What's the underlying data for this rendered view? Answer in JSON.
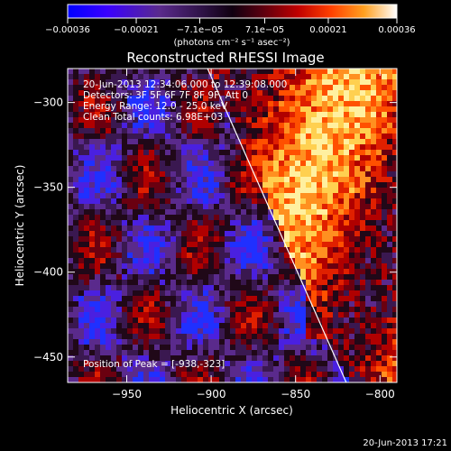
{
  "chart_data": {
    "type": "heatmap",
    "title": "Reconstructed RHESSI Image",
    "xlabel": "Heliocentric X (arcsec)",
    "ylabel": "Heliocentric Y (arcsec)",
    "xlim": [
      -985,
      -790
    ],
    "ylim": [
      -465,
      -280
    ],
    "x_ticks": [
      -950,
      -900,
      -850,
      -800
    ],
    "y_ticks": [
      -300,
      -350,
      -400,
      -450
    ],
    "x_tick_labels": [
      "−950",
      "−900",
      "−850",
      "−800"
    ],
    "y_tick_labels": [
      "−300",
      "−350",
      "−400",
      "−450"
    ],
    "colorbar": {
      "range": [
        -0.00036,
        0.00036
      ],
      "ticks": [
        -0.00036,
        -0.00021,
        -7.1e-05,
        7.1e-05,
        0.00021,
        0.00036
      ],
      "tick_labels": [
        "−0.00036",
        "−0.00021",
        "−7.1e−05",
        "7.1e−05",
        "0.00021",
        "0.00036"
      ],
      "units": "(photons cm⁻² s⁻¹ asec⁻²)"
    },
    "annotations": [
      "20-Jun-2013 12:34:06.000 to 12:39:08.000",
      "Detectors: 3F 5F 6F 7F 8F 9F, Att 0",
      "Energy Range: 12.0 - 25.0 keV",
      "Clean    Total counts: 6.98E+03"
    ],
    "peak_label": "Position of Peak = [-938,-323]",
    "peak": [
      -938,
      -323
    ],
    "limb_line": [
      [
        -903,
        -278
      ],
      [
        -820,
        -465
      ]
    ]
  },
  "footer_timestamp": "20-Jun-2013 17:21",
  "colors": {
    "background": "#000000",
    "text": "#ffffff",
    "colormap": [
      "#0000ff",
      "#5a00ff",
      "#5a2a8c",
      "#201030",
      "#500010",
      "#b00000",
      "#ff3000",
      "#ff9000",
      "#ffd040",
      "#ffffff"
    ]
  }
}
